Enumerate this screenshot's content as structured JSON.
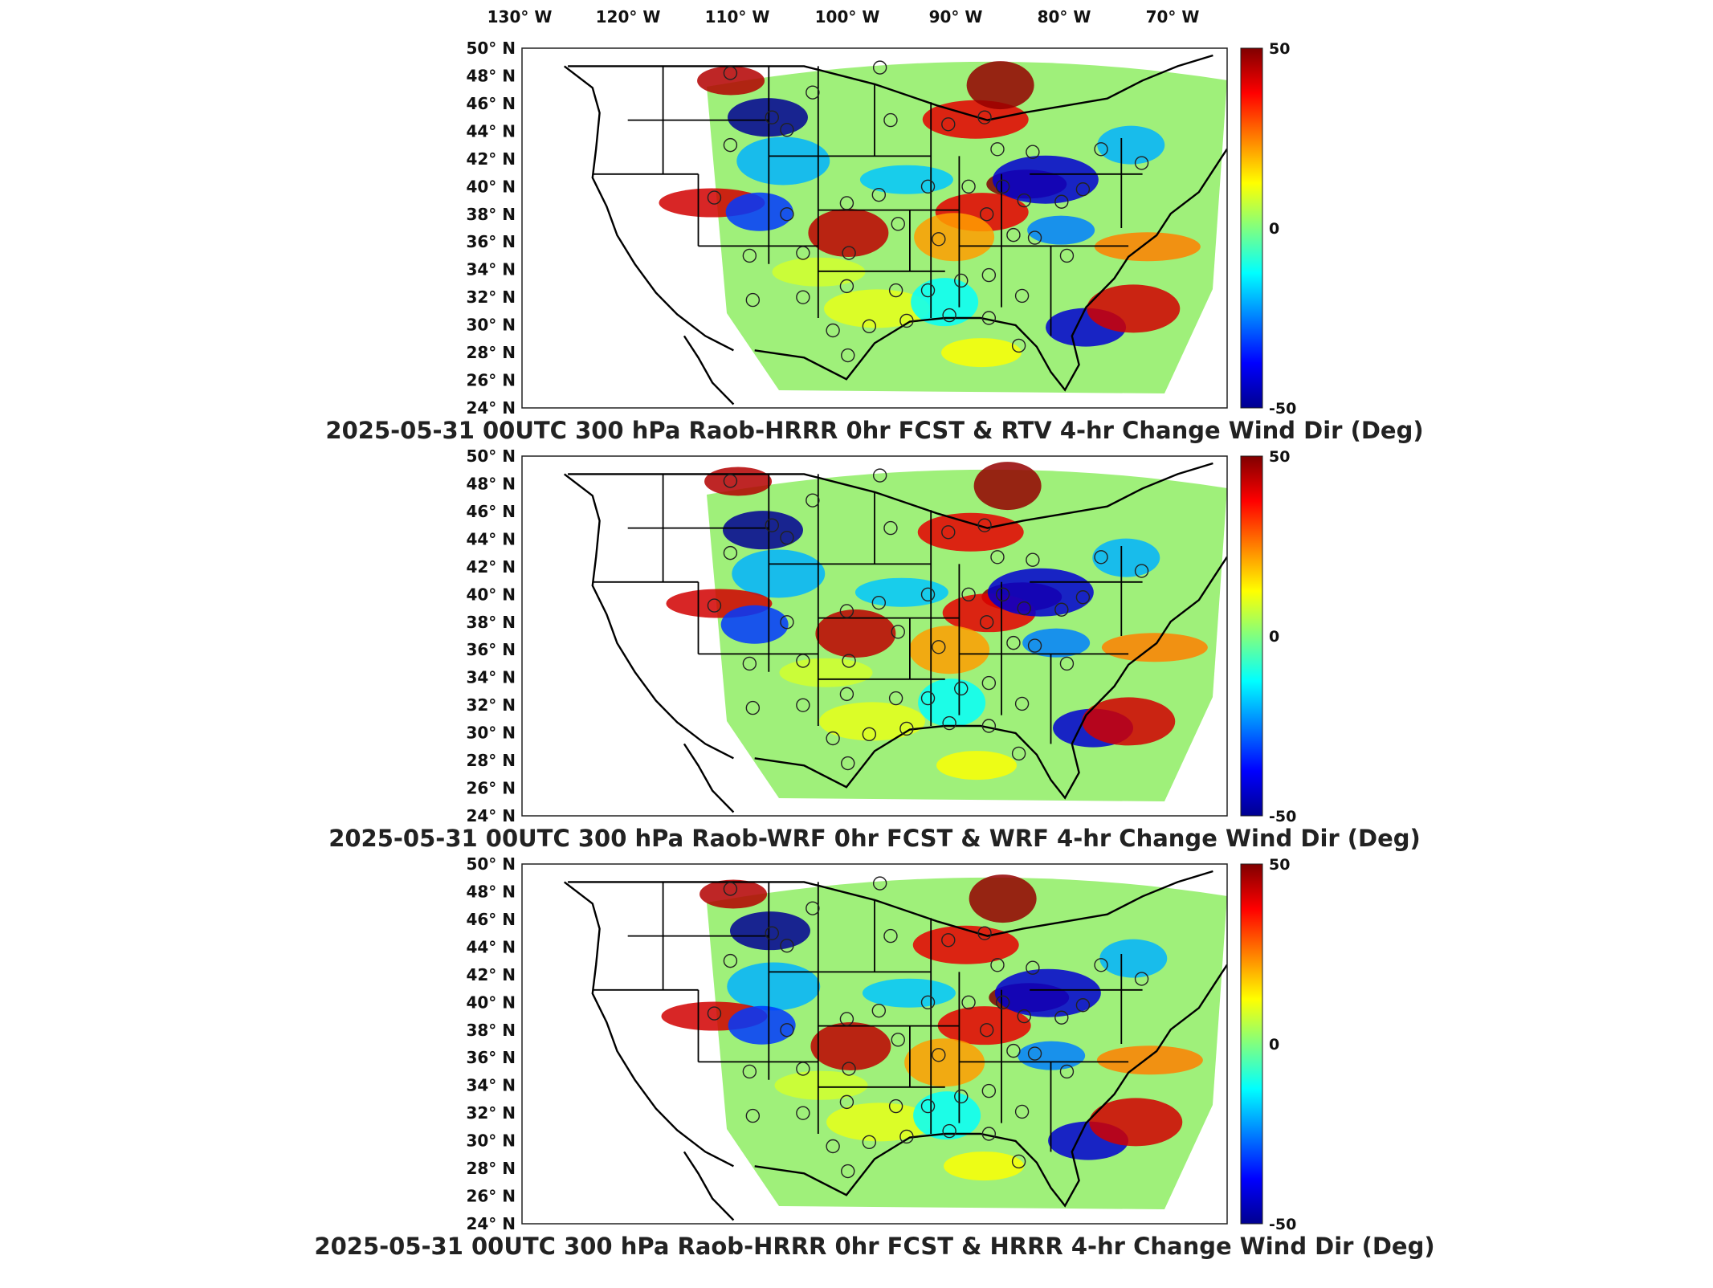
{
  "lon_labels": [
    "130° W",
    "120° W",
    "110° W",
    "100° W",
    "90° W",
    "80° W",
    "70° W"
  ],
  "lat_labels": [
    "50° N",
    "48° N",
    "46° N",
    "44° N",
    "42° N",
    "40° N",
    "38° N",
    "36° N",
    "34° N",
    "32° N",
    "30° N",
    "28° N",
    "26° N",
    "24° N"
  ],
  "colorbar": {
    "max": "50",
    "mid": "0",
    "min": "-50",
    "colormap": "jet"
  },
  "panels": [
    {
      "id": "hrrr-rtv",
      "title": "2025-05-31 00UTC 300 hPa Raob-HRRR 0hr FCST & RTV 4-hr Change Wind Dir (Deg)"
    },
    {
      "id": "wrf",
      "title": "2025-05-31 00UTC 300 hPa Raob-WRF 0hr FCST & WRF 4-hr Change Wind Dir (Deg)"
    },
    {
      "id": "hrrr",
      "title": "2025-05-31 00UTC 300 hPa Raob-HRRR 0hr FCST & HRRR 4-hr Change Wind Dir (Deg)"
    }
  ],
  "features": [
    {
      "lon": -108,
      "lat": 48.0,
      "v": 45
    },
    {
      "lon": -105,
      "lat": 45.0,
      "v": -48
    },
    {
      "lon": -104,
      "lat": 41.5,
      "v": -20
    },
    {
      "lon": -110,
      "lat": 39.0,
      "v": 42
    },
    {
      "lon": -106,
      "lat": 38.0,
      "v": -32
    },
    {
      "lon": -97,
      "lat": 37.0,
      "v": 44
    },
    {
      "lon": -92,
      "lat": 40.5,
      "v": -18
    },
    {
      "lon": -86,
      "lat": 44.5,
      "v": 40
    },
    {
      "lon": -83,
      "lat": 47.5,
      "v": 48
    },
    {
      "lon": -81,
      "lat": 40.0,
      "v": 50
    },
    {
      "lon": -84.5,
      "lat": 38.5,
      "v": 40
    },
    {
      "lon": -79,
      "lat": 40.5,
      "v": -42
    },
    {
      "lon": -78,
      "lat": 36.5,
      "v": -25
    },
    {
      "lon": -75,
      "lat": 30.0,
      "v": -42
    },
    {
      "lon": -71,
      "lat": 31.0,
      "v": 42
    },
    {
      "lon": -69,
      "lat": 36.0,
      "v": 25
    },
    {
      "lon": -71,
      "lat": 43.0,
      "v": -20
    },
    {
      "lon": -88,
      "lat": 36.0,
      "v": 22
    },
    {
      "lon": -100,
      "lat": 34.0,
      "v": 8
    },
    {
      "lon": -95,
      "lat": 31.0,
      "v": 10
    },
    {
      "lon": -88,
      "lat": 32.0,
      "v": -12
    },
    {
      "lon": -85,
      "lat": 28.0,
      "v": 12
    }
  ],
  "raob_sites": [
    [
      -108.5,
      48.2
    ],
    [
      -104.6,
      45.0
    ],
    [
      -100.8,
      46.8
    ],
    [
      -94.5,
      48.6
    ],
    [
      -108.5,
      43.0
    ],
    [
      -103.2,
      44.1
    ],
    [
      -93.5,
      44.8
    ],
    [
      -88.1,
      44.5
    ],
    [
      -84.7,
      45.0
    ],
    [
      -83.5,
      42.7
    ],
    [
      -80.2,
      42.5
    ],
    [
      -73.8,
      42.7
    ],
    [
      -70.0,
      41.7
    ],
    [
      -110.0,
      39.2
    ],
    [
      -103.2,
      38.0
    ],
    [
      -97.6,
      38.8
    ],
    [
      -94.6,
      39.4
    ],
    [
      -90.0,
      40.0
    ],
    [
      -86.2,
      40.0
    ],
    [
      -83.0,
      40.0
    ],
    [
      -81.0,
      39.0
    ],
    [
      -77.5,
      38.9
    ],
    [
      -75.5,
      39.8
    ],
    [
      -106.7,
      35.0
    ],
    [
      -101.7,
      35.2
    ],
    [
      -97.4,
      35.2
    ],
    [
      -92.8,
      37.3
    ],
    [
      -89.0,
      36.2
    ],
    [
      -84.5,
      38.0
    ],
    [
      -82.0,
      36.5
    ],
    [
      -80.0,
      36.3
    ],
    [
      -77.0,
      35.0
    ],
    [
      -106.4,
      31.8
    ],
    [
      -101.7,
      32.0
    ],
    [
      -97.6,
      32.8
    ],
    [
      -93.0,
      32.5
    ],
    [
      -90.0,
      32.5
    ],
    [
      -86.9,
      33.2
    ],
    [
      -84.3,
      33.6
    ],
    [
      -81.2,
      32.1
    ],
    [
      -98.9,
      29.6
    ],
    [
      -95.5,
      29.9
    ],
    [
      -92.0,
      30.3
    ],
    [
      -88.0,
      30.7
    ],
    [
      -84.3,
      30.5
    ],
    [
      -97.5,
      27.8
    ],
    [
      -81.5,
      28.5
    ]
  ]
}
